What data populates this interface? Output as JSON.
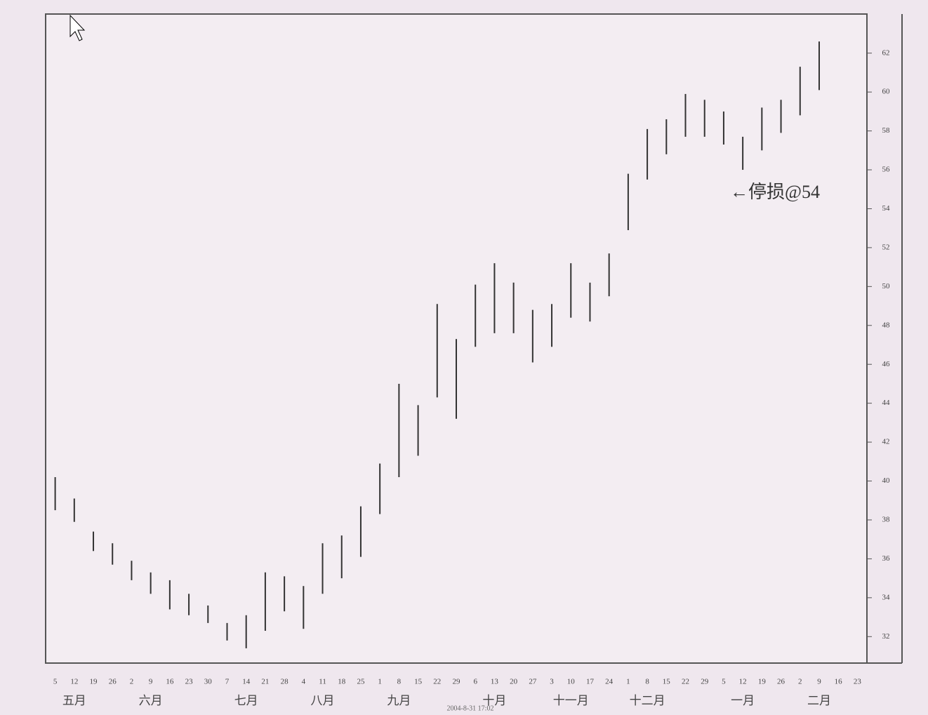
{
  "chart_data": {
    "type": "range_bar",
    "categories": [
      "5",
      "12",
      "19",
      "26",
      "2",
      "9",
      "16",
      "23",
      "30",
      "7",
      "14",
      "21",
      "28",
      "4",
      "11",
      "18",
      "25",
      "1",
      "8",
      "15",
      "22",
      "29",
      "6",
      "13",
      "20",
      "27",
      "3",
      "10",
      "17",
      "24",
      "1",
      "8",
      "15",
      "22",
      "29",
      "5",
      "12",
      "19",
      "26",
      "2",
      "9",
      "16",
      "23"
    ],
    "months": [
      "五月",
      "六月",
      "七月",
      "八月",
      "九月",
      "十月",
      "十一月",
      "十二月",
      "一月",
      "二月"
    ],
    "series": [
      {
        "name": "high",
        "color": "#333333",
        "values": [
          40.2,
          39.1,
          37.4,
          36.8,
          35.9,
          35.3,
          34.9,
          34.2,
          33.6,
          32.7,
          33.1,
          35.3,
          35.1,
          34.6,
          36.8,
          37.2,
          38.7,
          40.9,
          45.0,
          43.9,
          49.1,
          47.3,
          50.1,
          51.2,
          50.2,
          48.8,
          49.1,
          51.2,
          50.2,
          51.7,
          55.8,
          58.1,
          58.6,
          59.9,
          59.6,
          59.0,
          57.7,
          59.2,
          59.6,
          61.3,
          62.6,
          null,
          null
        ]
      },
      {
        "name": "low",
        "color": "#333333",
        "values": [
          38.5,
          37.9,
          36.4,
          35.7,
          34.9,
          34.2,
          33.4,
          33.1,
          32.7,
          31.8,
          31.4,
          32.3,
          33.3,
          32.4,
          34.2,
          35.0,
          36.1,
          38.3,
          40.2,
          41.3,
          44.3,
          43.2,
          46.9,
          47.6,
          47.6,
          46.1,
          46.9,
          48.4,
          48.2,
          49.5,
          52.9,
          55.5,
          56.8,
          57.7,
          57.7,
          57.3,
          56.0,
          57.0,
          57.9,
          58.8,
          60.1,
          null,
          null
        ]
      }
    ],
    "annotation": "←停损@54",
    "timestamp": "2004-8-31 17:02",
    "ylim": [
      31,
      63
    ],
    "yticks": [
      32,
      34,
      36,
      38,
      40,
      42,
      44,
      46,
      48,
      50,
      52,
      54,
      56,
      58,
      60,
      62
    ],
    "grid": false
  }
}
